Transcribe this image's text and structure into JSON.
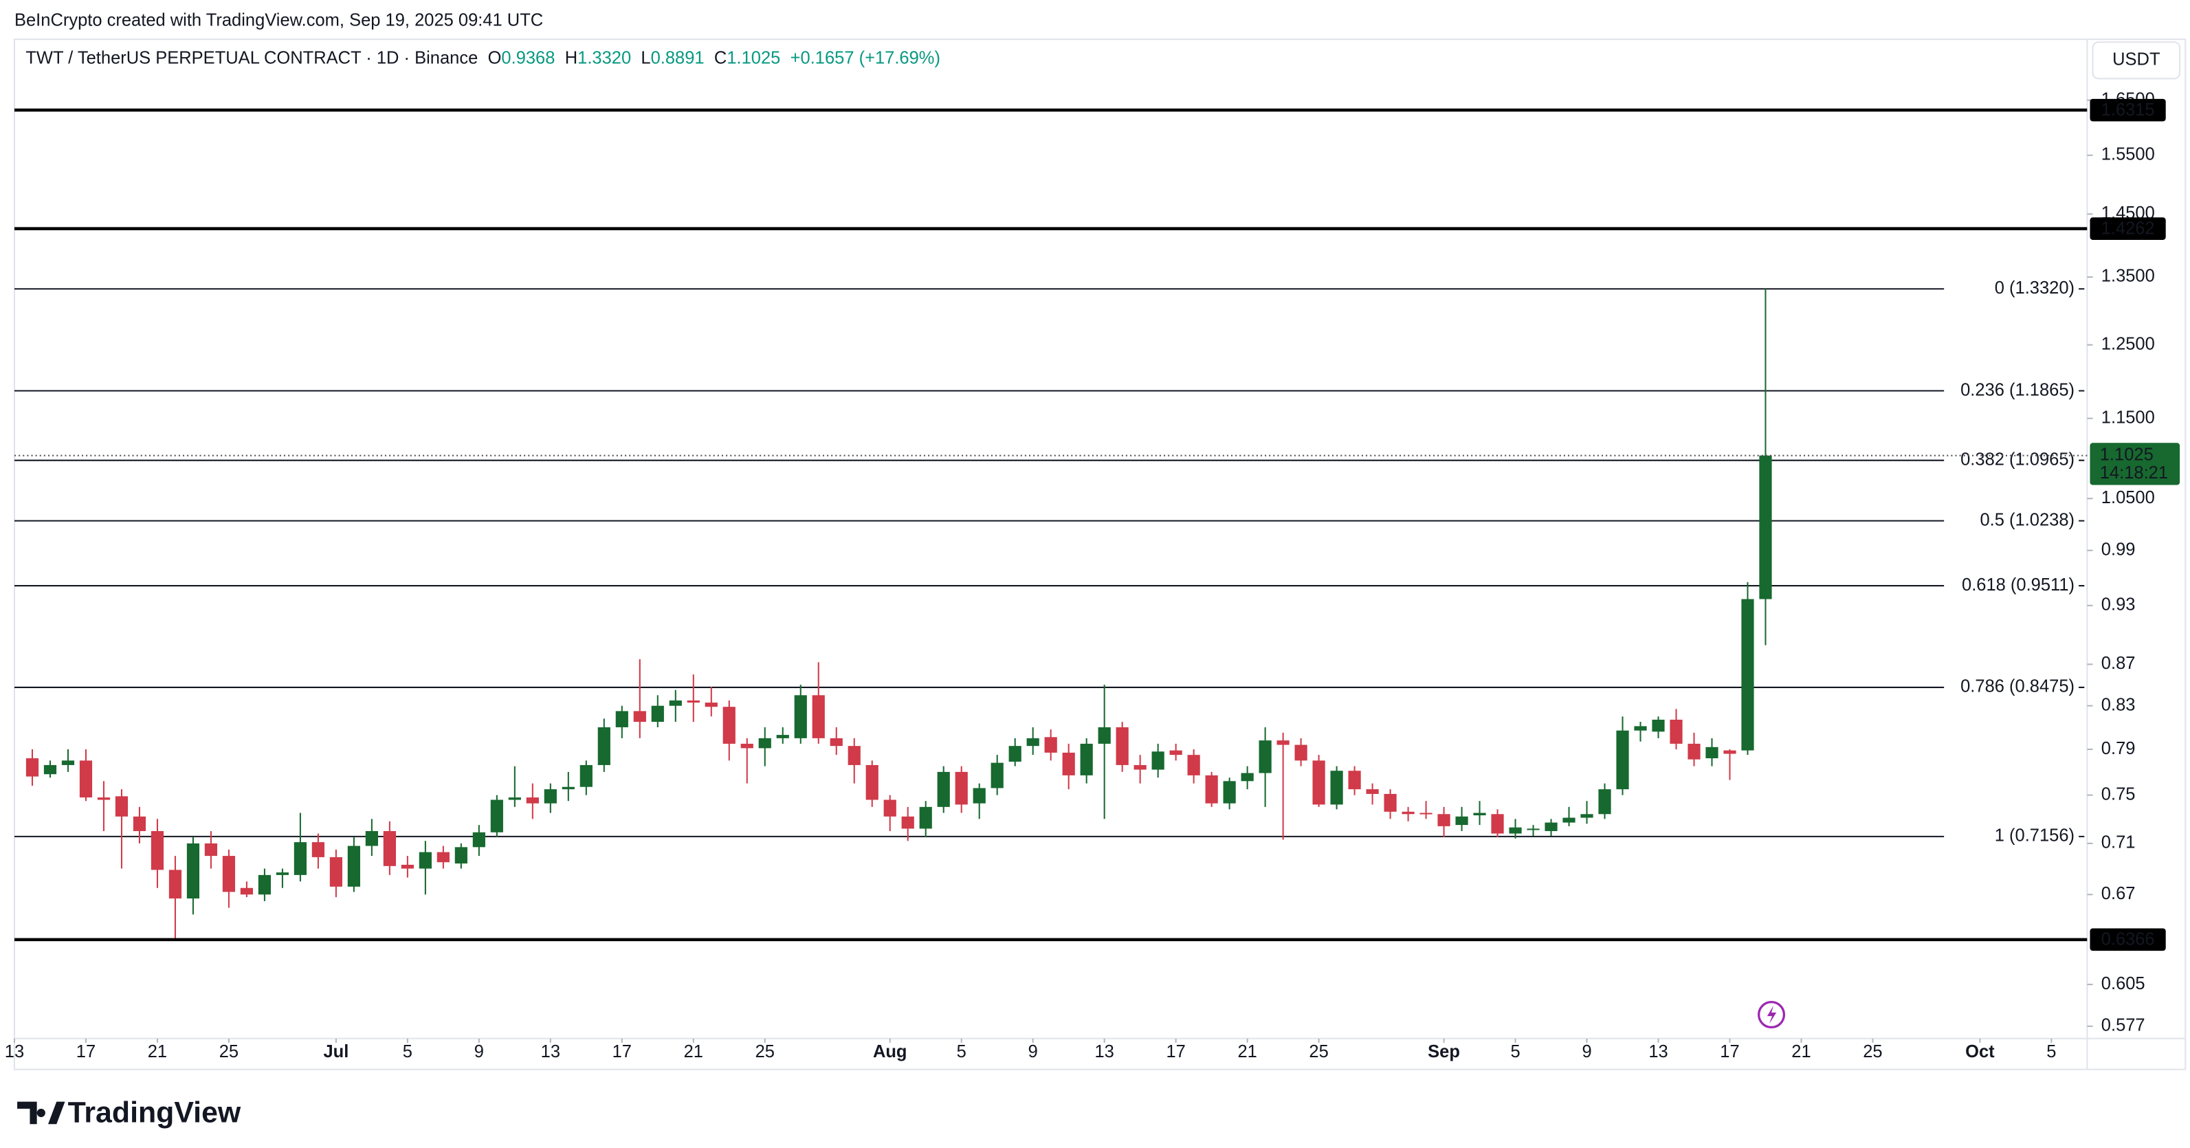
{
  "header": {
    "credit": "BeInCrypto created with TradingView.com, Sep 19, 2025 09:41 UTC",
    "logo": "TradingView",
    "currency": "USDT"
  },
  "chart_data": {
    "type": "candlestick",
    "title": "TWT / TetherUS PERPETUAL CONTRACT · 1D · Binance",
    "ohlc_prefixes": [
      "O",
      "H",
      "L",
      "C"
    ],
    "last_bar_labels": [
      "0.9368",
      "1.3320",
      "0.8891",
      "1.1025"
    ],
    "change": "+0.1657 (+17.69%)",
    "countdown": "14:18:21",
    "up_color": "#17692f",
    "down_color": "#d03a49",
    "log_scale": true,
    "ylim": [
      0.569,
      1.768
    ],
    "yticks": [
      {
        "value": 1.65,
        "label": "1.6500"
      },
      {
        "value": 1.55,
        "label": "1.5500"
      },
      {
        "value": 1.45,
        "label": "1.4500"
      },
      {
        "value": 1.35,
        "label": "1.3500"
      },
      {
        "value": 1.25,
        "label": "1.2500"
      },
      {
        "value": 1.15,
        "label": "1.1500"
      },
      {
        "value": 1.05,
        "label": "1.0500"
      },
      0.99,
      0.93,
      0.87,
      0.83,
      0.79,
      0.75,
      0.71,
      0.67,
      0.605,
      0.577
    ],
    "xlim": [
      "Jun 13",
      "Oct 7"
    ],
    "xticks": [
      {
        "value": "Jun 13",
        "label": "13"
      },
      {
        "value": "Jun 17",
        "label": "17"
      },
      {
        "value": "Jun 21",
        "label": "21"
      },
      {
        "value": "Jun 25",
        "label": "25"
      },
      {
        "value": "Jul 1",
        "label": "Jul"
      },
      {
        "value": "Jul 5",
        "label": "5"
      },
      {
        "value": "Jul 9",
        "label": "9"
      },
      {
        "value": "Jul 13",
        "label": "13"
      },
      {
        "value": "Jul 17",
        "label": "17"
      },
      {
        "value": "Jul 21",
        "label": "21"
      },
      {
        "value": "Jul 25",
        "label": "25"
      },
      {
        "value": "Aug 1",
        "label": "Aug"
      },
      {
        "value": "Aug 5",
        "label": "5"
      },
      {
        "value": "Aug 9",
        "label": "9"
      },
      {
        "value": "Aug 13",
        "label": "13"
      },
      {
        "value": "Aug 17",
        "label": "17"
      },
      {
        "value": "Aug 21",
        "label": "21"
      },
      {
        "value": "Aug 25",
        "label": "25"
      },
      {
        "value": "Sep 1",
        "label": "Sep"
      },
      {
        "value": "Sep 5",
        "label": "5"
      },
      {
        "value": "Sep 9",
        "label": "9"
      },
      {
        "value": "Sep 13",
        "label": "13"
      },
      {
        "value": "Sep 17",
        "label": "17"
      },
      {
        "value": "Sep 21",
        "label": "21"
      },
      {
        "value": "Sep 25",
        "label": "25"
      },
      {
        "value": "Oct 1",
        "label": "Oct"
      },
      {
        "value": "Oct 5",
        "label": "5"
      }
    ],
    "hlines": [
      1.6315,
      1.4262,
      0.6366
    ],
    "fib_levels": [
      {
        "label": "0 (1.3320)",
        "value": 1.332
      },
      {
        "label": "0.236 (1.1865)",
        "value": 1.1865
      },
      {
        "label": "0.382 (1.0965)",
        "value": 1.0965
      },
      {
        "label": "0.5 (1.0238)",
        "value": 1.0238
      },
      {
        "label": "0.618 (0.9511)",
        "value": 0.9511
      },
      {
        "label": "0.786 (0.8475)",
        "value": 0.8475
      },
      {
        "label": "1 (0.7156)",
        "value": 0.7156
      }
    ],
    "categories": [
      "Jun 14",
      "Jun 15",
      "Jun 16",
      "Jun 17",
      "Jun 18",
      "Jun 19",
      "Jun 20",
      "Jun 21",
      "Jun 22",
      "Jun 23",
      "Jun 24",
      "Jun 25",
      "Jun 26",
      "Jun 27",
      "Jun 28",
      "Jun 29",
      "Jun 30",
      "Jul 1",
      "Jul 2",
      "Jul 3",
      "Jul 4",
      "Jul 5",
      "Jul 6",
      "Jul 7",
      "Jul 8",
      "Jul 9",
      "Jul 10",
      "Jul 11",
      "Jul 12",
      "Jul 13",
      "Jul 14",
      "Jul 15",
      "Jul 16",
      "Jul 17",
      "Jul 18",
      "Jul 19",
      "Jul 20",
      "Jul 21",
      "Jul 22",
      "Jul 23",
      "Jul 24",
      "Jul 25",
      "Jul 26",
      "Jul 27",
      "Jul 28",
      "Jul 29",
      "Jul 30",
      "Jul 31",
      "Aug 1",
      "Aug 2",
      "Aug 3",
      "Aug 4",
      "Aug 5",
      "Aug 6",
      "Aug 7",
      "Aug 8",
      "Aug 9",
      "Aug 10",
      "Aug 11",
      "Aug 12",
      "Aug 13",
      "Aug 14",
      "Aug 15",
      "Aug 16",
      "Aug 17",
      "Aug 18",
      "Aug 19",
      "Aug 20",
      "Aug 21",
      "Aug 22",
      "Aug 23",
      "Aug 24",
      "Aug 25",
      "Aug 26",
      "Aug 27",
      "Aug 28",
      "Aug 29",
      "Aug 30",
      "Aug 31",
      "Sep 1",
      "Sep 2",
      "Sep 3",
      "Sep 4",
      "Sep 5",
      "Sep 6",
      "Sep 7",
      "Sep 8",
      "Sep 9",
      "Sep 10",
      "Sep 11",
      "Sep 12",
      "Sep 13",
      "Sep 14",
      "Sep 15",
      "Sep 16",
      "Sep 17",
      "Sep 18",
      "Sep 19"
    ],
    "open": [
      0.782,
      0.768,
      0.776,
      0.78,
      0.748,
      0.749,
      0.732,
      0.72,
      0.689,
      0.667,
      0.71,
      0.7,
      0.675,
      0.67,
      0.685,
      0.685,
      0.711,
      0.699,
      0.676,
      0.708,
      0.72,
      0.693,
      0.69,
      0.703,
      0.694,
      0.707,
      0.719,
      0.746,
      0.748,
      0.743,
      0.755,
      0.757,
      0.776,
      0.81,
      0.825,
      0.815,
      0.83,
      0.835,
      0.833,
      0.829,
      0.795,
      0.791,
      0.8,
      0.8,
      0.84,
      0.8,
      0.793,
      0.776,
      0.746,
      0.732,
      0.722,
      0.74,
      0.77,
      0.743,
      0.756,
      0.779,
      0.793,
      0.801,
      0.787,
      0.767,
      0.795,
      0.81,
      0.776,
      0.772,
      0.789,
      0.785,
      0.767,
      0.743,
      0.762,
      0.769,
      0.798,
      0.794,
      0.78,
      0.742,
      0.771,
      0.755,
      0.751,
      0.736,
      0.735,
      0.734,
      0.725,
      0.733,
      0.734,
      0.718,
      0.721,
      0.72,
      0.727,
      0.731,
      0.734,
      0.755,
      0.807,
      0.806,
      0.817,
      0.795,
      0.782,
      0.789,
      0.789,
      0.9368
    ],
    "high": [
      0.79,
      0.78,
      0.79,
      0.79,
      0.762,
      0.755,
      0.74,
      0.73,
      0.7,
      0.715,
      0.72,
      0.705,
      0.68,
      0.69,
      0.69,
      0.735,
      0.718,
      0.705,
      0.715,
      0.73,
      0.728,
      0.7,
      0.712,
      0.708,
      0.71,
      0.725,
      0.75,
      0.775,
      0.76,
      0.76,
      0.77,
      0.78,
      0.818,
      0.83,
      0.875,
      0.84,
      0.845,
      0.86,
      0.848,
      0.835,
      0.8,
      0.81,
      0.81,
      0.85,
      0.872,
      0.81,
      0.8,
      0.78,
      0.75,
      0.74,
      0.745,
      0.775,
      0.775,
      0.76,
      0.785,
      0.8,
      0.81,
      0.808,
      0.795,
      0.8,
      0.85,
      0.815,
      0.785,
      0.795,
      0.795,
      0.79,
      0.77,
      0.765,
      0.775,
      0.81,
      0.805,
      0.8,
      0.785,
      0.775,
      0.775,
      0.76,
      0.755,
      0.74,
      0.745,
      0.74,
      0.74,
      0.745,
      0.738,
      0.73,
      0.725,
      0.73,
      0.74,
      0.745,
      0.76,
      0.82,
      0.815,
      0.82,
      0.827,
      0.805,
      0.8,
      0.79,
      0.955,
      1.332
    ],
    "low": [
      0.758,
      0.765,
      0.77,
      0.745,
      0.72,
      0.69,
      0.71,
      0.675,
      0.636,
      0.655,
      0.69,
      0.66,
      0.668,
      0.665,
      0.675,
      0.68,
      0.69,
      0.668,
      0.672,
      0.7,
      0.685,
      0.683,
      0.67,
      0.69,
      0.69,
      0.7,
      0.715,
      0.74,
      0.73,
      0.735,
      0.745,
      0.75,
      0.77,
      0.8,
      0.8,
      0.81,
      0.815,
      0.815,
      0.82,
      0.78,
      0.76,
      0.775,
      0.795,
      0.795,
      0.795,
      0.785,
      0.76,
      0.74,
      0.72,
      0.712,
      0.715,
      0.735,
      0.735,
      0.73,
      0.75,
      0.775,
      0.785,
      0.78,
      0.755,
      0.76,
      0.73,
      0.77,
      0.76,
      0.765,
      0.78,
      0.76,
      0.74,
      0.738,
      0.755,
      0.74,
      0.713,
      0.775,
      0.74,
      0.738,
      0.75,
      0.742,
      0.73,
      0.728,
      0.73,
      0.715,
      0.72,
      0.725,
      0.715,
      0.714,
      0.716,
      0.716,
      0.724,
      0.726,
      0.73,
      0.75,
      0.797,
      0.8,
      0.79,
      0.775,
      0.775,
      0.763,
      0.785,
      0.8891
    ],
    "close": [
      0.766,
      0.776,
      0.78,
      0.748,
      0.746,
      0.732,
      0.72,
      0.689,
      0.667,
      0.71,
      0.7,
      0.672,
      0.67,
      0.685,
      0.687,
      0.711,
      0.699,
      0.676,
      0.708,
      0.72,
      0.692,
      0.69,
      0.703,
      0.695,
      0.707,
      0.719,
      0.746,
      0.748,
      0.743,
      0.755,
      0.757,
      0.776,
      0.81,
      0.825,
      0.815,
      0.83,
      0.835,
      0.833,
      0.829,
      0.795,
      0.791,
      0.8,
      0.803,
      0.84,
      0.8,
      0.793,
      0.776,
      0.746,
      0.732,
      0.722,
      0.74,
      0.77,
      0.742,
      0.756,
      0.778,
      0.793,
      0.8,
      0.787,
      0.767,
      0.795,
      0.81,
      0.776,
      0.772,
      0.788,
      0.785,
      0.767,
      0.743,
      0.762,
      0.769,
      0.798,
      0.794,
      0.78,
      0.742,
      0.771,
      0.755,
      0.751,
      0.736,
      0.734,
      0.734,
      0.724,
      0.732,
      0.735,
      0.718,
      0.723,
      0.722,
      0.727,
      0.731,
      0.734,
      0.755,
      0.807,
      0.811,
      0.817,
      0.795,
      0.781,
      0.792,
      0.786,
      0.9368,
      1.1025
    ]
  }
}
